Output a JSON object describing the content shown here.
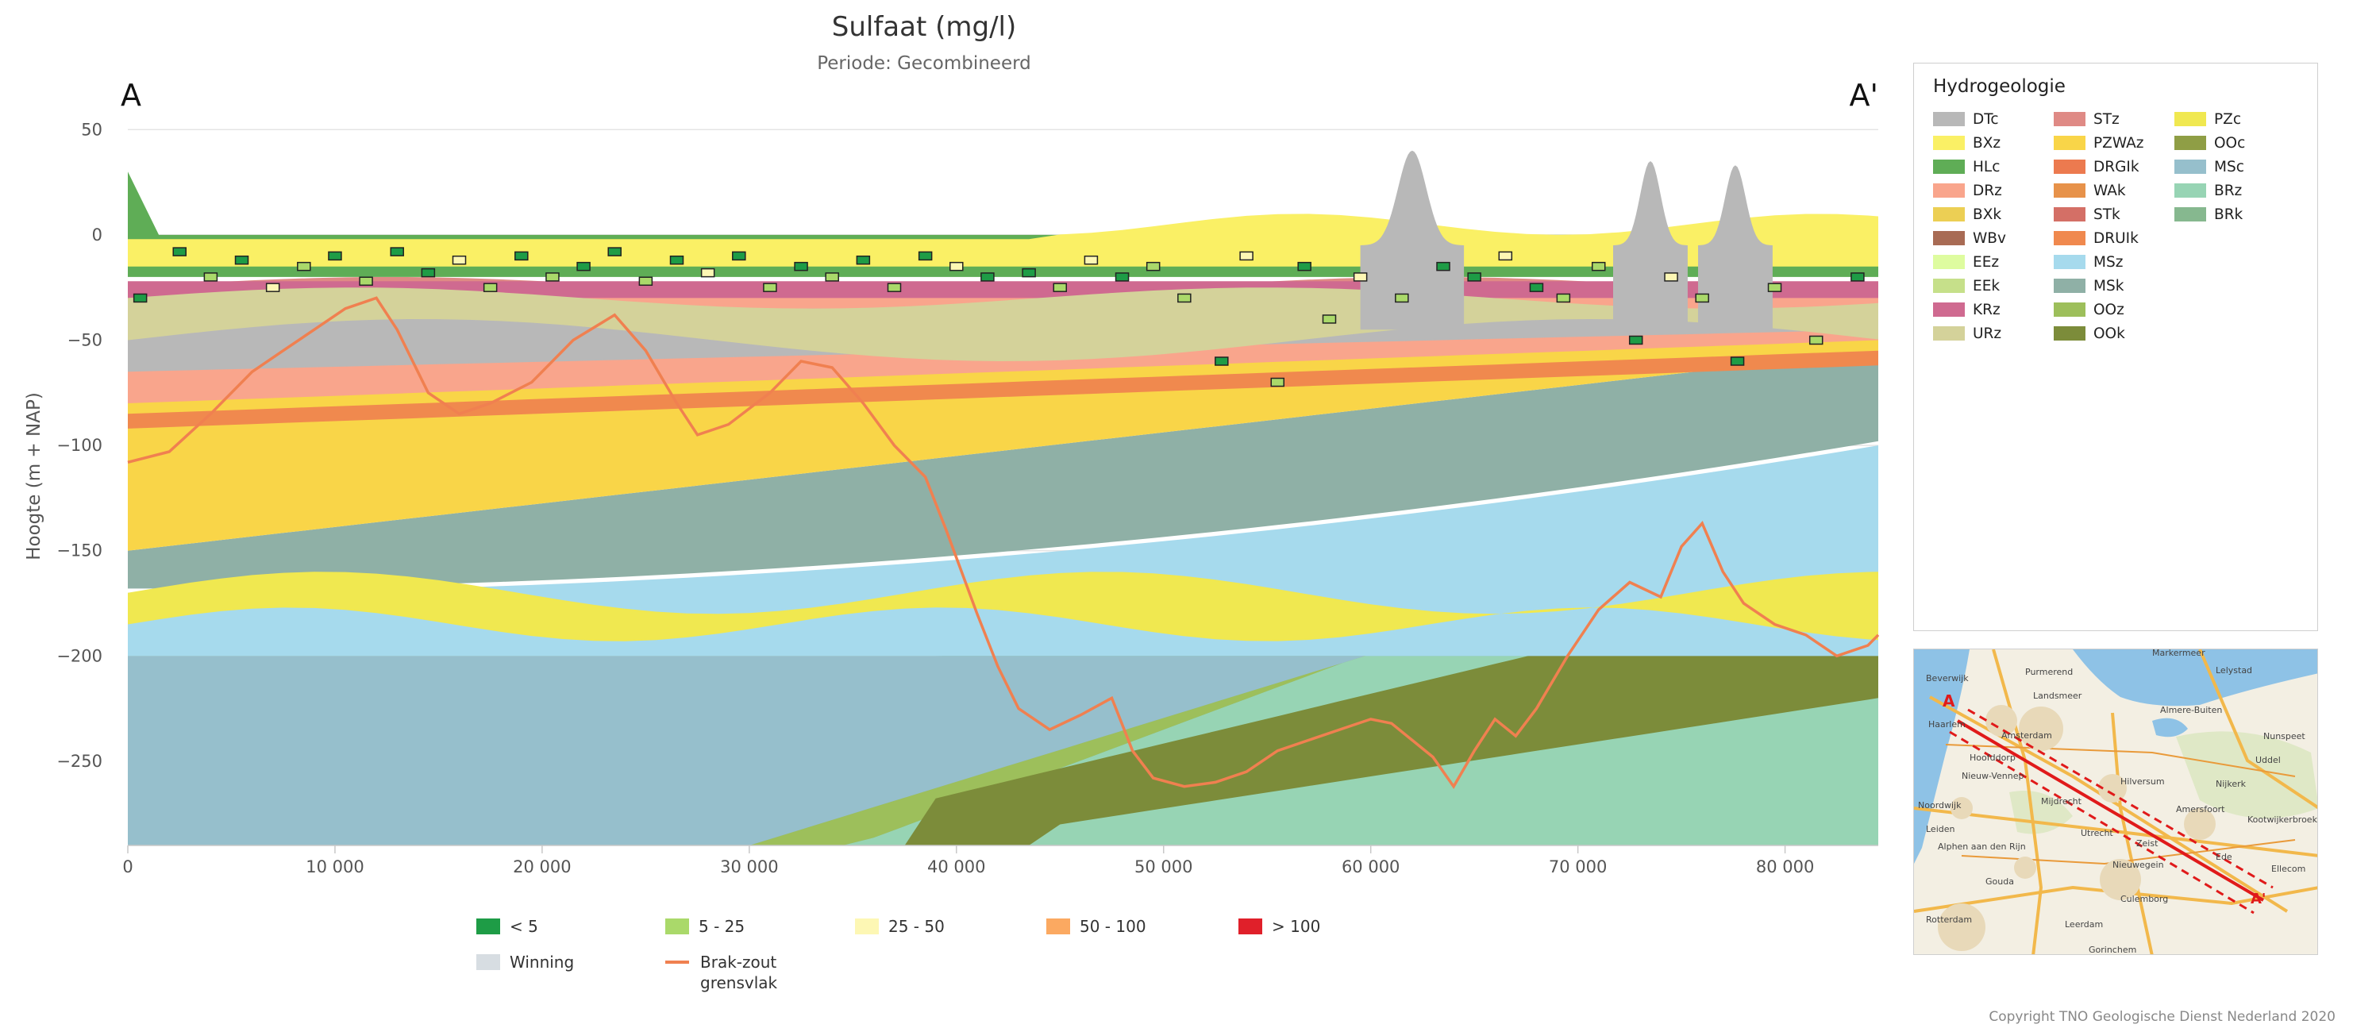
{
  "chart_data": {
    "type": "area",
    "title": "Sulfaat (mg/l)",
    "subtitle": "Periode: Gecombineerd",
    "section_start_label": "A",
    "section_end_label": "A'",
    "ylabel": "Hoogte (m + NAP)",
    "xlabel": "",
    "xlim": [
      0,
      84500
    ],
    "ylim": [
      -290,
      55
    ],
    "x_ticks": [
      0,
      10000,
      20000,
      30000,
      40000,
      50000,
      60000,
      70000,
      80000
    ],
    "x_tick_labels": [
      "0",
      "10 000",
      "20 000",
      "30 000",
      "40 000",
      "50 000",
      "60 000",
      "70 000",
      "80 000"
    ],
    "y_ticks": [
      50,
      0,
      -50,
      -100,
      -150,
      -200,
      -250
    ],
    "y_tick_labels": [
      "50",
      "0",
      "−50",
      "−100",
      "−150",
      "−200",
      "−250"
    ],
    "grid": "horizontal",
    "layer_colors": {
      "BRk": "#86b88f",
      "BRz": "#97d4b4",
      "MSc": "#96bfcc",
      "MSz": "#a6daed",
      "MSk": "#8fb0a6",
      "OOk": "#7c8c3a",
      "OOz": "#9dbf5b",
      "PZWAz": "#f9d548",
      "PZc": "#f0e850",
      "STz": "#df8a85",
      "KRz": "#cf6a90",
      "DRz": "#f9a58c",
      "DTc": "#b8b8b8",
      "HLc": "#5fad56",
      "BXz": "#faf065",
      "URz": "#d4d29a",
      "EEk": "#c6e08a",
      "DRUIk": "#f0894e",
      "WAk": "#ec9a4e"
    },
    "salt_fresh_interface": {
      "name": "Brak-zout grensvlak",
      "color": "#f08050",
      "x": [
        0,
        2000,
        4000,
        6000,
        7500,
        9000,
        10500,
        12000,
        13000,
        14500,
        16000,
        17500,
        19500,
        21500,
        23500,
        25000,
        26500,
        27500,
        29000,
        31000,
        32500,
        34000,
        35500,
        37000,
        38500,
        39500,
        41000,
        42000,
        43000,
        44500,
        46000,
        47500,
        48500,
        49500,
        51000,
        52500,
        54000,
        55500,
        57000,
        58500,
        60000,
        61000,
        62000,
        63000,
        64000,
        65000,
        66000,
        67000,
        68000,
        69500,
        71000,
        72500,
        74000,
        75000,
        76000,
        77000,
        78000,
        79500,
        81000,
        82500,
        84000,
        84500
      ],
      "y": [
        -108,
        -103,
        -85,
        -65,
        -55,
        -45,
        -35,
        -30,
        -45,
        -75,
        -85,
        -80,
        -70,
        -50,
        -38,
        -55,
        -80,
        -95,
        -90,
        -75,
        -60,
        -63,
        -80,
        -100,
        -115,
        -140,
        -180,
        -205,
        -225,
        -235,
        -228,
        -220,
        -245,
        -258,
        -262,
        -260,
        -255,
        -245,
        -240,
        -235,
        -230,
        -232,
        -240,
        -248,
        -262,
        -245,
        -230,
        -238,
        -225,
        -200,
        -178,
        -165,
        -172,
        -148,
        -137,
        -160,
        -175,
        -185,
        -190,
        -200,
        -195,
        -190
      ]
    },
    "measurements": {
      "x": [
        600,
        2500,
        4000,
        5500,
        7000,
        8500,
        10000,
        11500,
        13000,
        14500,
        16000,
        17500,
        19000,
        20500,
        22000,
        23500,
        25000,
        26500,
        28000,
        29500,
        31000,
        32500,
        34000,
        35500,
        37000,
        38500,
        40000,
        41500,
        43500,
        45000,
        46500,
        48000,
        49500,
        51000,
        52800,
        54000,
        55500,
        56800,
        58000,
        59500,
        61500,
        63500,
        65000,
        66500,
        68000,
        69300,
        71000,
        72800,
        74500,
        76000,
        77700,
        79500,
        81500,
        83500
      ],
      "y": [
        -30,
        -8,
        -20,
        -12,
        -25,
        -15,
        -10,
        -22,
        -8,
        -18,
        -12,
        -25,
        -10,
        -20,
        -15,
        -8,
        -22,
        -12,
        -18,
        -10,
        -25,
        -15,
        -20,
        -12,
        -25,
        -10,
        -15,
        -20,
        -18,
        -25,
        -12,
        -20,
        -15,
        -30,
        -60,
        -10,
        -70,
        -15,
        -40,
        -20,
        -30,
        -15,
        -20,
        -10,
        -25,
        -30,
        -15,
        -50,
        -20,
        -30,
        -60,
        -25,
        -50,
        -20
      ],
      "category": [
        "<5",
        "<5",
        "5-25",
        "<5",
        "25-50",
        "5-25",
        "<5",
        "5-25",
        "<5",
        "<5",
        "25-50",
        "5-25",
        "<5",
        "5-25",
        "<5",
        "<5",
        "5-25",
        "<5",
        "25-50",
        "<5",
        "5-25",
        "<5",
        "5-25",
        "<5",
        "5-25",
        "<5",
        "25-50",
        "<5",
        "<5",
        "5-25",
        "25-50",
        "<5",
        "5-25",
        "5-25",
        "<5",
        "25-50",
        "5-25",
        "<5",
        "5-25",
        "25-50",
        "5-25",
        "<5",
        "<5",
        "25-50",
        "<5",
        "5-25",
        "5-25",
        "<5",
        "25-50",
        "5-25",
        "<5",
        "5-25",
        "5-25",
        "<5"
      ]
    },
    "legend_categories": [
      {
        "label": "< 5",
        "color": "#1e9c46"
      },
      {
        "label": "5 - 25",
        "color": "#aad96a"
      },
      {
        "label": "25 - 50",
        "color": "#fdf7b4"
      },
      {
        "label": "50 - 100",
        "color": "#fba961"
      },
      {
        "label": "> 100",
        "color": "#e0202a"
      },
      {
        "label": "Winning",
        "color": "#d7dde2"
      },
      {
        "label": "Brak-zout grensvlak",
        "color": "#f08050"
      }
    ]
  },
  "legend": {
    "title": "Hydrogeologie",
    "items": [
      {
        "label": "DTc",
        "color": "#b8b8b8"
      },
      {
        "label": "BXz",
        "color": "#faf065"
      },
      {
        "label": "HLc",
        "color": "#5fad56"
      },
      {
        "label": "DRz",
        "color": "#f9a58c"
      },
      {
        "label": "BXk",
        "color": "#eccf54"
      },
      {
        "label": "WBv",
        "color": "#a86b54"
      },
      {
        "label": "EEz",
        "color": "#defc9f"
      },
      {
        "label": "EEk",
        "color": "#c6e08a"
      },
      {
        "label": "KRz",
        "color": "#cf6a90"
      },
      {
        "label": "URz",
        "color": "#d4d29a"
      },
      {
        "label": "STz",
        "color": "#df8a85"
      },
      {
        "label": "PZWAz",
        "color": "#f9d548"
      },
      {
        "label": "DRGIk",
        "color": "#ec7a4f"
      },
      {
        "label": "WAk",
        "color": "#e7924a"
      },
      {
        "label": "STk",
        "color": "#d46f66"
      },
      {
        "label": "DRUIk",
        "color": "#f0894e"
      },
      {
        "label": "MSz",
        "color": "#a6daed"
      },
      {
        "label": "MSk",
        "color": "#8fb0a6"
      },
      {
        "label": "OOz",
        "color": "#9dbf5b"
      },
      {
        "label": "OOk",
        "color": "#7c8c3a"
      },
      {
        "label": "PZc",
        "color": "#f0e850"
      },
      {
        "label": "OOc",
        "color": "#8f9e45"
      },
      {
        "label": "MSc",
        "color": "#96bfcc"
      },
      {
        "label": "BRz",
        "color": "#97d4b4"
      },
      {
        "label": "BRk",
        "color": "#86b88f"
      }
    ]
  },
  "map": {
    "places": [
      "Beverwijk",
      "Purmerend",
      "Lelystad",
      "Landsmeer",
      "Haarlem",
      "Amsterdam",
      "Almere-Buiten",
      "Hoofddorp",
      "Nieuw-Vennep",
      "Noordwijk",
      "Mijdrecht",
      "Hilversum",
      "Nijkerk",
      "Leiden",
      "Alphen aan den Rijn",
      "Amersfoort",
      "Kootwijkerbroek",
      "Gouda",
      "Utrecht",
      "Zeist",
      "Ede",
      "Nieuwegein",
      "Rotterdam",
      "Culemborg",
      "Leerdam",
      "Gorinchem",
      "Uddel",
      "Ellecom",
      "Nunspeet",
      "Markermeer"
    ],
    "start_label": "A",
    "end_label": "A'"
  },
  "copyright": "Copyright TNO Geologische Dienst Nederland 2020"
}
